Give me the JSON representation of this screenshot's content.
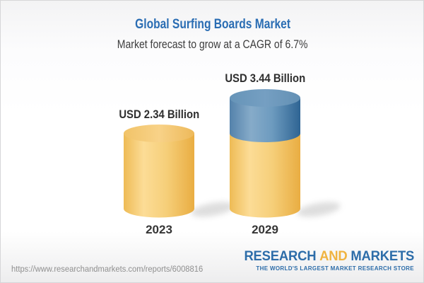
{
  "header": {
    "title": "Global Surfing Boards Market",
    "subtitle": "Market forecast to grow at a CAGR of 6.7%"
  },
  "chart_data": {
    "type": "bar",
    "variant": "3d-cylinder",
    "categories": [
      "2023",
      "2029"
    ],
    "values": [
      2.34,
      3.44
    ],
    "unit": "USD Billion",
    "value_labels": [
      "USD 2.34 Billion",
      "USD 3.44 Billion"
    ],
    "cagr_pct": 6.7,
    "series_colors": {
      "base": "#f5cb74",
      "growth": "#5585ad"
    },
    "legend": "none",
    "axes": "none"
  },
  "footer": {
    "url": "https://www.researchandmarkets.com/reports/6008816",
    "logo": {
      "word1": "RESEARCH",
      "word2": "AND",
      "word3": "MARKETS",
      "tagline": "THE WORLD'S LARGEST MARKET RESEARCH STORE"
    }
  },
  "colors": {
    "title_blue": "#2a6db3",
    "text_dark": "#2f2f2f",
    "logo_blue": "#2d6da9",
    "logo_gold": "#f0b340",
    "url_gray": "#8f8f8f"
  }
}
